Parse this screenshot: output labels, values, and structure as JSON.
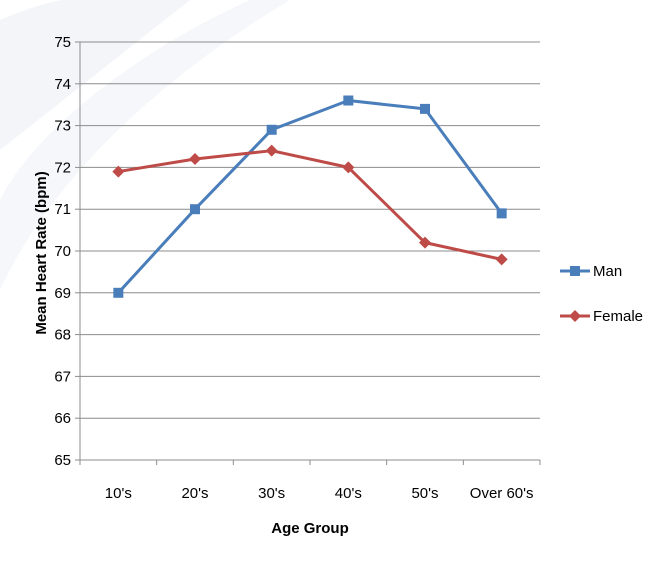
{
  "chart_data": {
    "type": "line",
    "title": "",
    "xlabel": "Age Group",
    "ylabel": "Mean Heart Rate (bpm)",
    "categories": [
      "10's",
      "20's",
      "30's",
      "40's",
      "50's",
      "Over 60's"
    ],
    "ylim": [
      65,
      75
    ],
    "yticks": [
      65,
      66,
      67,
      68,
      69,
      70,
      71,
      72,
      73,
      74,
      75
    ],
    "grid": true,
    "legend_position": "right",
    "series": [
      {
        "name": "Man",
        "color": "#4a7ebb",
        "marker": "square",
        "values": [
          69.0,
          71.0,
          72.9,
          73.6,
          73.4,
          70.9
        ]
      },
      {
        "name": "Female",
        "color": "#be4b48",
        "marker": "diamond",
        "values": [
          71.9,
          72.2,
          72.4,
          72.0,
          70.2,
          69.8
        ]
      }
    ]
  }
}
